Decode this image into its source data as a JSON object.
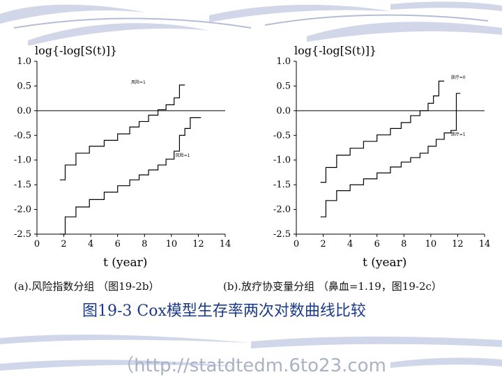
{
  "colors": {
    "accent": "#2d4a9a",
    "background_swoosh": "#c9d0e6",
    "footer_text": "#a8b2c4"
  },
  "chart_data": [
    {
      "type": "line",
      "step": true,
      "ylabel": "log{-log[S(t)]}",
      "xlabel": "t  (year)",
      "xlim": [
        0,
        14
      ],
      "ylim": [
        -2.5,
        1.0
      ],
      "xticks": [
        "0",
        "2",
        "4",
        "6",
        "8",
        "10",
        "12",
        "14"
      ],
      "yticks": [
        "1.0",
        "0.5",
        "0.0",
        "-0.5",
        "-1.0",
        "-1.5",
        "-2.0",
        "-2.5"
      ],
      "hline": 0,
      "series": [
        {
          "name": "风险=1",
          "x": [
            1.7,
            2.1,
            2.9,
            3.9,
            5.0,
            6.0,
            6.9,
            7.6,
            8.3,
            9.0,
            9.6,
            10.2,
            10.6,
            11.0
          ],
          "y": [
            -1.4,
            -1.1,
            -0.86,
            -0.72,
            -0.6,
            -0.47,
            -0.33,
            -0.22,
            -0.09,
            0.02,
            0.12,
            0.26,
            0.52,
            0.52
          ]
        },
        {
          "name": "风险=1",
          "x": [
            1.7,
            2.1,
            2.9,
            3.9,
            5.0,
            6.0,
            6.9,
            7.6,
            8.3,
            9.0,
            9.6,
            10.2,
            10.6,
            11.0,
            11.4,
            11.8,
            12.2
          ],
          "y": [
            -2.5,
            -2.15,
            -1.95,
            -1.8,
            -1.65,
            -1.52,
            -1.4,
            -1.3,
            -1.2,
            -1.1,
            -0.98,
            -0.82,
            -0.5,
            -0.36,
            -0.14,
            -0.14,
            -0.14
          ]
        }
      ],
      "annotations": [
        {
          "text": "风险=1",
          "x": 7.0,
          "y": 0.55
        },
        {
          "text": "风险=1",
          "x": 10.3,
          "y": -0.93
        }
      ]
    },
    {
      "type": "line",
      "step": true,
      "ylabel": "log{-log[S(t)]}",
      "xlabel": "t  (year)",
      "xlim": [
        0,
        14
      ],
      "ylim": [
        -2.5,
        1.0
      ],
      "xticks": [
        "0",
        "2",
        "4",
        "6",
        "8",
        "10",
        "12",
        "14"
      ],
      "yticks": [
        "1.0",
        "0.5",
        "0.0",
        "-0.5",
        "-1.0",
        "-1.5",
        "-2.0",
        "-2.5"
      ],
      "hline": 0,
      "series": [
        {
          "name": "放疗=0",
          "x": [
            1.8,
            2.2,
            3.0,
            4.0,
            5.0,
            6.0,
            7.0,
            7.8,
            8.5,
            9.2,
            9.8,
            10.2,
            10.6,
            11.0
          ],
          "y": [
            -1.45,
            -1.15,
            -0.9,
            -0.76,
            -0.62,
            -0.49,
            -0.36,
            -0.24,
            -0.1,
            0.0,
            0.15,
            0.3,
            0.6,
            0.6
          ]
        },
        {
          "name": "放疗=1",
          "x": [
            1.8,
            2.2,
            3.0,
            4.0,
            5.0,
            6.0,
            7.0,
            7.8,
            8.5,
            9.2,
            9.8,
            10.4,
            11.0,
            11.5,
            11.9,
            12.2
          ],
          "y": [
            -2.15,
            -1.82,
            -1.62,
            -1.5,
            -1.38,
            -1.26,
            -1.14,
            -1.04,
            -0.95,
            -0.86,
            -0.72,
            -0.58,
            -0.45,
            -0.4,
            0.35,
            0.35
          ]
        }
      ],
      "annotations": [
        {
          "text": "放疗=0",
          "x": 11.5,
          "y": 0.65
        },
        {
          "text": "放疗=1",
          "x": 11.5,
          "y": -0.5
        }
      ]
    }
  ],
  "captions": {
    "a": "(a).风险指数分组 （图19-2b）",
    "b": "(b).放疗协变量分组 （鼻血=1.19，图19-2c）"
  },
  "figure_title": "图19-3  Cox模型生存率两次对数曲线比较",
  "footer_url": "（http://statdtedm.6to23.com"
}
